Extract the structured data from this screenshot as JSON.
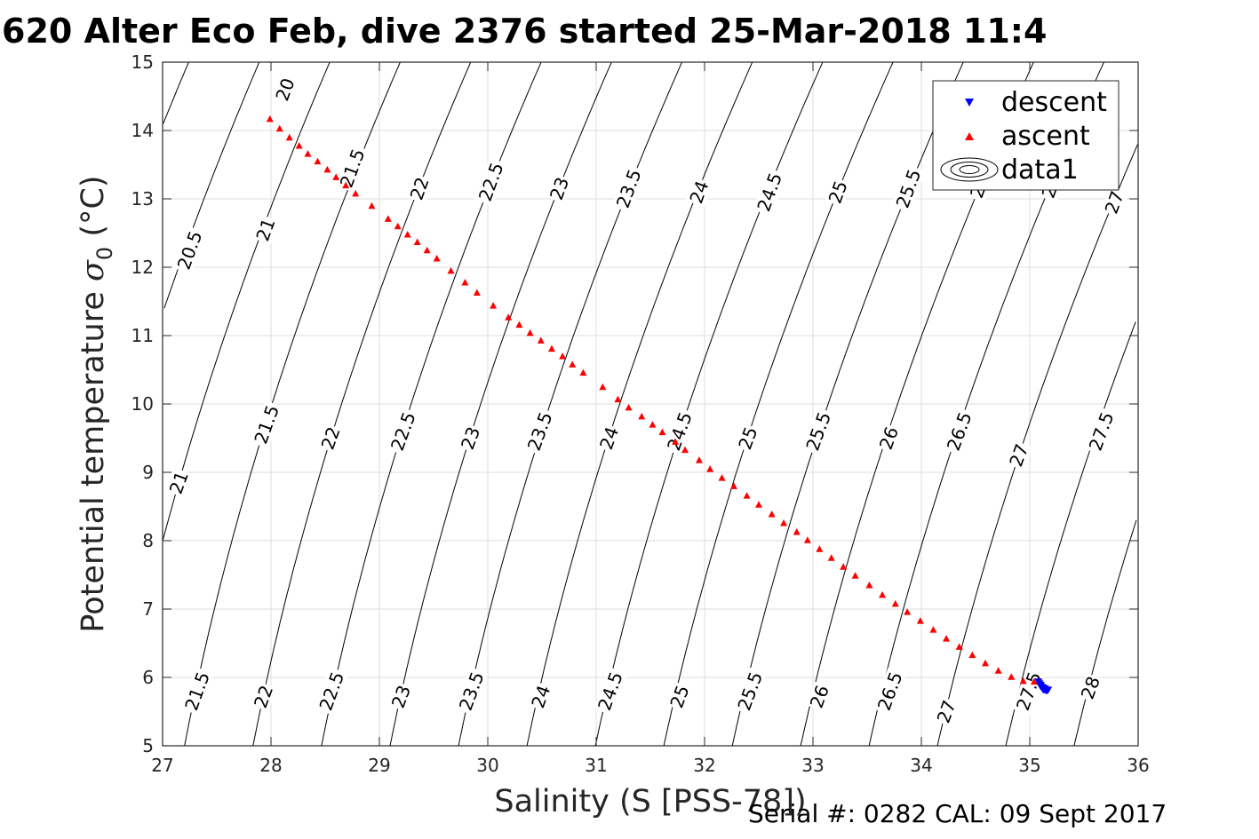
{
  "title": "620 Alter Eco Feb, dive 2376 started 25-Mar-2018 11:4",
  "serial": "Serial #: 0282  CAL: 09 Sept 2017",
  "chart_data": {
    "type": "scatter",
    "xlabel": "Salinity (S [PSS-78])",
    "ylabel_main": "Potential temperature ",
    "ylabel_sigma": "σ",
    "ylabel_sub": "0",
    "ylabel_unit": " (°C)",
    "xlim": [
      27,
      36
    ],
    "ylim": [
      5,
      15
    ],
    "xticks": [
      27,
      28,
      29,
      30,
      31,
      32,
      33,
      34,
      35,
      36
    ],
    "yticks": [
      5,
      6,
      7,
      8,
      9,
      10,
      11,
      12,
      13,
      14,
      15
    ],
    "grid": true,
    "legend_position": "top-right",
    "legend": [
      "descent",
      "ascent",
      "data1"
    ],
    "colors": {
      "descent": "#0000ff",
      "ascent": "#ff0000",
      "contour": "#000000",
      "grid": "#dedede"
    },
    "contour_levels": [
      20,
      20.5,
      21,
      21.5,
      22,
      22.5,
      23,
      23.5,
      24,
      24.5,
      25,
      25.5,
      26,
      26.5,
      27,
      27.5,
      28
    ],
    "contour_labels": [
      {
        "text": "20",
        "s": 28.13,
        "t": 14.6
      },
      {
        "text": "20.5",
        "s": 27.25,
        "t": 12.25
      },
      {
        "text": "21",
        "s": 27.95,
        "t": 12.55
      },
      {
        "text": "21.5",
        "s": 28.75,
        "t": 13.45
      },
      {
        "text": "22",
        "s": 29.37,
        "t": 13.15
      },
      {
        "text": "22.5",
        "s": 30.03,
        "t": 13.25
      },
      {
        "text": "23",
        "s": 30.66,
        "t": 13.15
      },
      {
        "text": "23.5",
        "s": 31.3,
        "t": 13.15
      },
      {
        "text": "24",
        "s": 31.95,
        "t": 13.1
      },
      {
        "text": "24.5",
        "s": 32.6,
        "t": 13.1
      },
      {
        "text": "25",
        "s": 33.23,
        "t": 13.1
      },
      {
        "text": "25.5",
        "s": 33.88,
        "t": 13.15
      },
      {
        "text": "2",
        "s": 34.52,
        "t": 13.1
      },
      {
        "text": "2",
        "s": 35.18,
        "t": 13.1
      },
      {
        "text": "27",
        "s": 35.78,
        "t": 12.95
      },
      {
        "text": "21",
        "s": 27.15,
        "t": 8.85
      },
      {
        "text": "21.5",
        "s": 27.96,
        "t": 9.7
      },
      {
        "text": "22",
        "s": 28.55,
        "t": 9.5
      },
      {
        "text": "22.5",
        "s": 29.22,
        "t": 9.6
      },
      {
        "text": "23",
        "s": 29.84,
        "t": 9.5
      },
      {
        "text": "23.5",
        "s": 30.48,
        "t": 9.6
      },
      {
        "text": "24",
        "s": 31.12,
        "t": 9.5
      },
      {
        "text": "24.5",
        "s": 31.77,
        "t": 9.6
      },
      {
        "text": "25",
        "s": 32.4,
        "t": 9.5
      },
      {
        "text": "25.5",
        "s": 33.05,
        "t": 9.6
      },
      {
        "text": "26",
        "s": 33.7,
        "t": 9.5
      },
      {
        "text": "26.5",
        "s": 34.35,
        "t": 9.6
      },
      {
        "text": "27",
        "s": 34.9,
        "t": 9.25
      },
      {
        "text": "27.5",
        "s": 35.66,
        "t": 9.6
      },
      {
        "text": "21.5",
        "s": 27.32,
        "t": 5.8
      },
      {
        "text": "22",
        "s": 27.93,
        "t": 5.72
      },
      {
        "text": "22.5",
        "s": 28.56,
        "t": 5.8
      },
      {
        "text": "23",
        "s": 29.2,
        "t": 5.72
      },
      {
        "text": "23.5",
        "s": 29.85,
        "t": 5.8
      },
      {
        "text": "24",
        "s": 30.49,
        "t": 5.72
      },
      {
        "text": "24.5",
        "s": 31.13,
        "t": 5.8
      },
      {
        "text": "25",
        "s": 31.77,
        "t": 5.72
      },
      {
        "text": "25.5",
        "s": 32.42,
        "t": 5.8
      },
      {
        "text": "26",
        "s": 33.06,
        "t": 5.72
      },
      {
        "text": "26.5",
        "s": 33.71,
        "t": 5.8
      },
      {
        "text": "27",
        "s": 34.23,
        "t": 5.5
      },
      {
        "text": "27.5",
        "s": 34.99,
        "t": 5.8
      },
      {
        "text": "28",
        "s": 35.56,
        "t": 5.85
      }
    ],
    "series": [
      {
        "name": "ascent",
        "marker": "triangle-up",
        "x": [
          27.99,
          28.08,
          28.17,
          28.26,
          28.34,
          28.43,
          28.52,
          28.6,
          28.69,
          28.78,
          28.93,
          29.08,
          29.17,
          29.26,
          29.35,
          29.44,
          29.53,
          29.66,
          29.79,
          29.9,
          30.05,
          30.19,
          30.29,
          30.39,
          30.49,
          30.59,
          30.69,
          30.78,
          30.88,
          31.06,
          31.2,
          31.3,
          31.42,
          31.52,
          31.61,
          31.73,
          31.82,
          31.95,
          32.05,
          32.16,
          32.27,
          32.39,
          32.5,
          32.62,
          32.73,
          32.85,
          32.95,
          33.06,
          33.17,
          33.28,
          33.39,
          33.52,
          33.64,
          33.76,
          33.87,
          33.99,
          34.11,
          34.23,
          34.35,
          34.47,
          34.59,
          34.71,
          34.83,
          34.94,
          35.04,
          35.09
        ],
        "y": [
          14.17,
          14.03,
          13.9,
          13.78,
          13.66,
          13.55,
          13.43,
          13.32,
          13.2,
          13.08,
          12.9,
          12.71,
          12.6,
          12.48,
          12.37,
          12.25,
          12.13,
          11.95,
          11.78,
          11.63,
          11.44,
          11.27,
          11.16,
          11.04,
          10.93,
          10.81,
          10.7,
          10.58,
          10.46,
          10.25,
          10.07,
          9.95,
          9.82,
          9.7,
          9.59,
          9.45,
          9.33,
          9.18,
          9.05,
          8.92,
          8.8,
          8.66,
          8.53,
          8.39,
          8.26,
          8.13,
          8.01,
          7.88,
          7.75,
          7.62,
          7.49,
          7.35,
          7.21,
          7.08,
          6.96,
          6.83,
          6.7,
          6.57,
          6.45,
          6.33,
          6.21,
          6.1,
          6.01,
          5.95,
          5.94,
          5.94
        ]
      },
      {
        "name": "descent",
        "marker": "triangle-down",
        "x": [
          35.08,
          35.09,
          35.1,
          35.1,
          35.11,
          35.12,
          35.12,
          35.13,
          35.14,
          35.15,
          35.16,
          35.17,
          35.12,
          35.14
        ],
        "y": [
          5.94,
          5.91,
          5.89,
          5.87,
          5.86,
          5.84,
          5.83,
          5.82,
          5.82,
          5.81,
          5.81,
          5.82,
          5.85,
          5.84
        ]
      }
    ]
  }
}
